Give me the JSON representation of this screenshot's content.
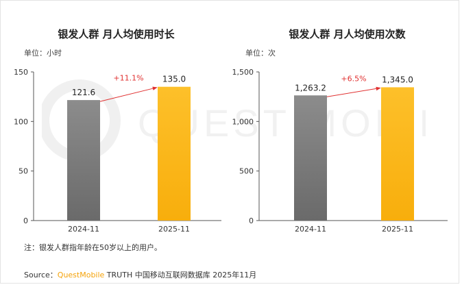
{
  "chart_data": [
    {
      "type": "bar",
      "title": "银发人群 月人均使用时长",
      "unit_label": "单位：小时",
      "categories": [
        "2024-11",
        "2025-11"
      ],
      "values": [
        121.6,
        135.0
      ],
      "value_labels": [
        "121.6",
        "135.0"
      ],
      "ylim": [
        0,
        150
      ],
      "yticks": [
        0,
        50,
        100,
        150
      ],
      "ytick_labels": [
        "0",
        "50",
        "100",
        "150"
      ],
      "growth_label": "+11.1%",
      "colors": [
        "#7a7a7a",
        "#fbb816"
      ],
      "grid": false
    },
    {
      "type": "bar",
      "title": "银发人群 月人均使用次数",
      "unit_label": "单位：次",
      "categories": [
        "2024-11",
        "2025-11"
      ],
      "values": [
        1263.2,
        1345.0
      ],
      "value_labels": [
        "1,263.2",
        "1,345.0"
      ],
      "ylim": [
        0,
        1500
      ],
      "yticks": [
        0,
        500,
        1000,
        1500
      ],
      "ytick_labels": [
        "0",
        "500",
        "1,000",
        "1,500"
      ],
      "growth_label": "+6.5%",
      "colors": [
        "#7a7a7a",
        "#fbb816"
      ],
      "grid": false
    }
  ],
  "footnote": "注：银发人群指年龄在50岁以上的用户。",
  "source": {
    "prefix": "Source：",
    "brand": "QuestMobile",
    "suffix": " TRUTH 中国移动互联网数据库 2025年11月"
  },
  "watermark": "QUEST MOBILE",
  "colors": {
    "growth_arrow": "#e03030",
    "axis": "#555555"
  }
}
